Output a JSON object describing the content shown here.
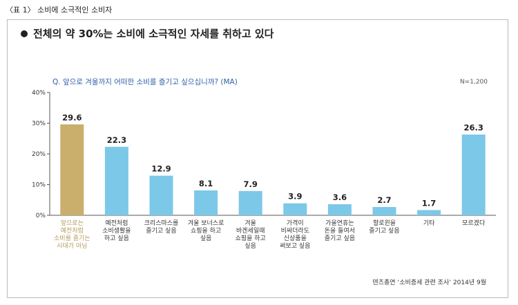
{
  "caption": "〈표 1〉 소비에 소극적인 소비자",
  "headline": "전체의 약 30%는 소비에 소극적인 자세를 취하고 있다",
  "question": "Q. 앞으로 겨울까지 어떠한 소비를 즐기고 싶으십니까? (MA)",
  "sample_size": "N=1,200",
  "source": "덴츠총연 ‘소비증세 관련 조사’ 2014년 9월",
  "colors": {
    "highlight": "#c9ae6c",
    "bar": "#7cc8e8",
    "highlight_text": "#b39a5b",
    "axis": "#555555"
  },
  "chart_data": {
    "type": "bar",
    "ylim": [
      0,
      40
    ],
    "yticks": [
      "0%",
      "10%",
      "20%",
      "30%",
      "40%"
    ],
    "categories": [
      "앞으로는\n예전처럼\n소비를 즐기는\n시대가 아님",
      "예전처럼\n소비생활을\n하고 싶음",
      "크리스마스를\n즐기고 싶음",
      "겨울 보너스로\n쇼핑을 하고\n싶음",
      "겨울\n바겐세일때\n쇼핑을 하고\n싶음",
      "가격이\n비싸더라도\n신상품을\n써보고 싶음",
      "가을연휴는\n돈을 들여서\n즐기고 싶음",
      "할로윈을\n즐기고 싶음",
      "기타",
      "모르겠다"
    ],
    "values": [
      29.6,
      22.3,
      12.9,
      8.1,
      7.9,
      3.9,
      3.6,
      2.7,
      1.7,
      26.3
    ],
    "value_labels": [
      "29.6",
      "22.3",
      "12.9",
      "8.1",
      "7.9",
      "3.9",
      "3.6",
      "2.7",
      "1.7",
      "26.3"
    ],
    "highlight_index": 0
  }
}
